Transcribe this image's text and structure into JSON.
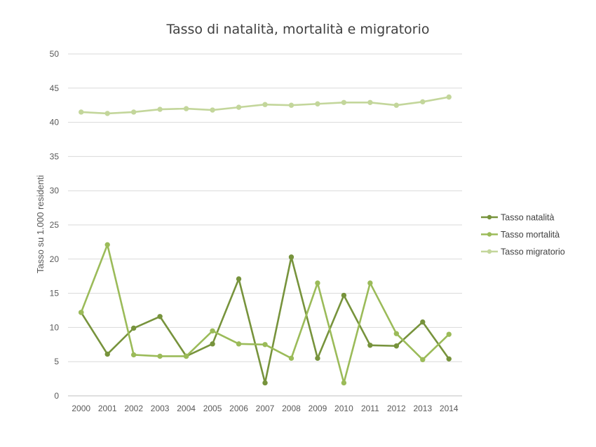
{
  "chart_data": {
    "type": "line",
    "title": "Tasso di natalità, mortalità e migratorio",
    "xlabel": "",
    "ylabel": "Tasso su 1.000 residenti",
    "ylim": [
      0,
      50
    ],
    "yticks": [
      0,
      5,
      10,
      15,
      20,
      25,
      30,
      35,
      40,
      45,
      50
    ],
    "grid": true,
    "legend_position": "right",
    "categories": [
      "2000",
      "2001",
      "2002",
      "2003",
      "2004",
      "2005",
      "2006",
      "2007",
      "2008",
      "2009",
      "2010",
      "2011",
      "2012",
      "2013",
      "2014"
    ],
    "series": [
      {
        "name": "Tasso natalità",
        "color": "#77933c",
        "values": [
          12.2,
          6.1,
          9.9,
          11.6,
          5.8,
          7.6,
          17.1,
          1.9,
          20.3,
          5.5,
          14.7,
          7.4,
          7.3,
          10.8,
          5.4
        ]
      },
      {
        "name": "Tasso mortalità",
        "color": "#9bbb59",
        "values": [
          12.2,
          22.1,
          6.0,
          5.8,
          5.8,
          9.5,
          7.6,
          7.5,
          5.5,
          16.5,
          1.9,
          16.5,
          9.1,
          5.3,
          9.0
        ]
      },
      {
        "name": "Tasso migratorio",
        "color": "#c3d69b",
        "values": [
          41.5,
          41.3,
          41.5,
          41.9,
          42.0,
          41.8,
          42.2,
          42.6,
          42.5,
          42.7,
          42.9,
          42.9,
          42.5,
          43.0,
          43.7
        ]
      }
    ]
  }
}
